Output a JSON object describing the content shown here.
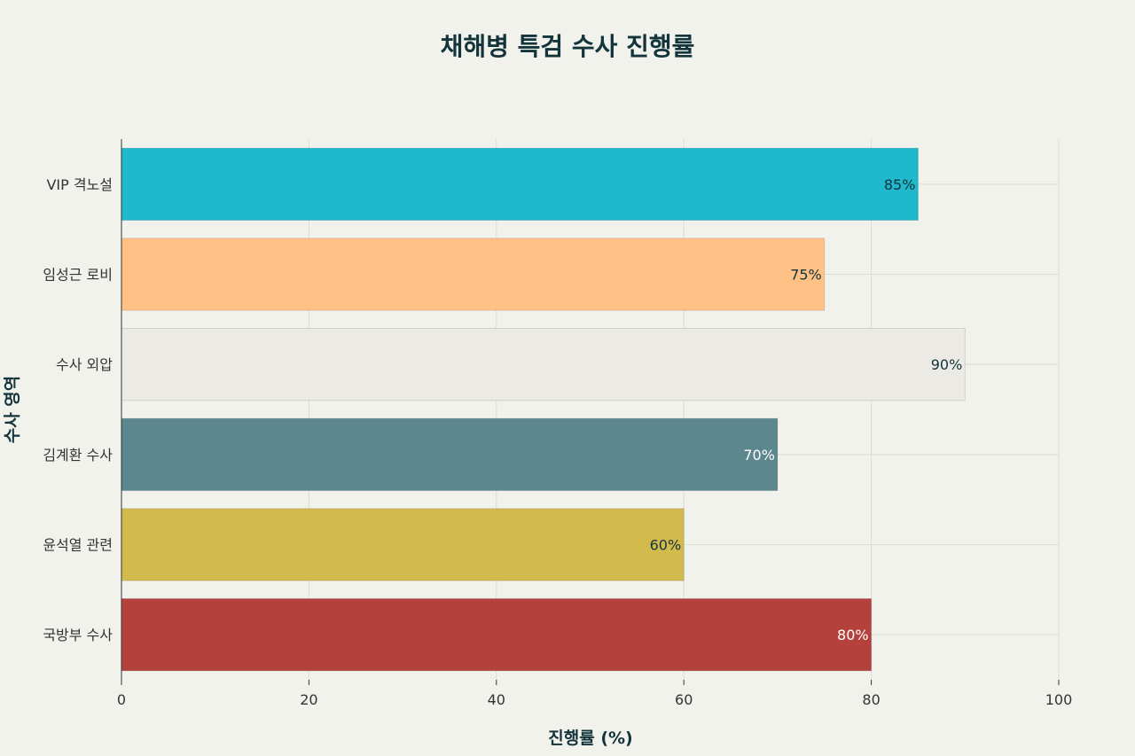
{
  "chart_data": {
    "type": "bar",
    "orientation": "horizontal",
    "title": "채해병 특검 수사 진행률",
    "xlabel": "진행률 (%)",
    "ylabel": "수사 영역",
    "xlim": [
      0,
      100
    ],
    "xticks": [
      "0",
      "20",
      "40",
      "60",
      "80",
      "100"
    ],
    "grid": true,
    "categories": [
      "VIP 격노설",
      "임성근 로비",
      "수사 외압",
      "김계환 수사",
      "윤석열 관련",
      "국방부 수사"
    ],
    "values": [
      85,
      75,
      90,
      70,
      60,
      80
    ],
    "data_labels": [
      "85%",
      "75%",
      "90%",
      "70%",
      "60%",
      "80%"
    ],
    "colors": [
      "#1fb8cd",
      "#ffc185",
      "#eceae4",
      "#5d878f",
      "#d2ba4c",
      "#b4413c"
    ],
    "label_colors": [
      "#13343b",
      "#13343b",
      "#13343b",
      "#ffffff",
      "#13343b",
      "#ffffff"
    ]
  }
}
